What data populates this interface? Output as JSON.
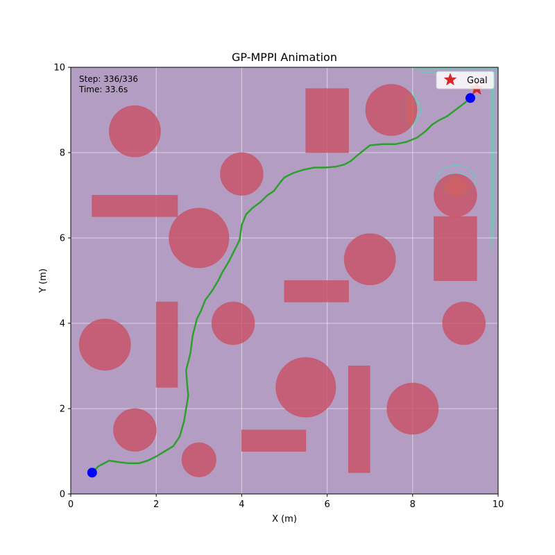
{
  "chart_data": {
    "type": "scatter",
    "title": "GP-MPPI Animation",
    "xlabel": "X (m)",
    "ylabel": "Y (m)",
    "xlim": [
      0,
      10
    ],
    "ylim": [
      0,
      10
    ],
    "xticks": [
      0,
      2,
      4,
      6,
      8,
      10
    ],
    "yticks": [
      0,
      2,
      4,
      6,
      8,
      10
    ],
    "grid": true,
    "legend": {
      "placement": "top-right",
      "entries": [
        {
          "label": "Goal",
          "marker": "star",
          "color": "#d62728"
        }
      ]
    },
    "info_text": {
      "step": "Step: 336/336",
      "time": "Time: 33.6s"
    },
    "colors": {
      "background": "#b49dc3",
      "obstacle": "#c85064",
      "path": "#2ca02c",
      "robot": "#0000ff",
      "goal": "#d62728",
      "hot": "#e8a060",
      "contour": "#5fd3b8"
    },
    "circle_obstacles": [
      {
        "x": 1.5,
        "y": 8.5,
        "r": 0.6
      },
      {
        "x": 4.0,
        "y": 7.5,
        "r": 0.5
      },
      {
        "x": 7.5,
        "y": 9.0,
        "r": 0.6
      },
      {
        "x": 3.0,
        "y": 6.0,
        "r": 0.7
      },
      {
        "x": 9.0,
        "y": 7.0,
        "r": 0.5
      },
      {
        "x": 7.0,
        "y": 5.5,
        "r": 0.6
      },
      {
        "x": 0.8,
        "y": 3.5,
        "r": 0.6
      },
      {
        "x": 3.8,
        "y": 4.0,
        "r": 0.5
      },
      {
        "x": 9.2,
        "y": 4.0,
        "r": 0.5
      },
      {
        "x": 5.5,
        "y": 2.5,
        "r": 0.7
      },
      {
        "x": 8.0,
        "y": 2.0,
        "r": 0.6
      },
      {
        "x": 1.5,
        "y": 1.5,
        "r": 0.5
      },
      {
        "x": 3.0,
        "y": 0.8,
        "r": 0.4
      }
    ],
    "rect_obstacles": [
      {
        "x0": 5.5,
        "y0": 8.0,
        "x1": 6.5,
        "y1": 9.5
      },
      {
        "x0": 0.5,
        "y0": 6.5,
        "x1": 2.5,
        "y1": 7.0
      },
      {
        "x0": 8.5,
        "y0": 5.0,
        "x1": 9.5,
        "y1": 6.5
      },
      {
        "x0": 5.0,
        "y0": 4.5,
        "x1": 6.5,
        "y1": 5.0
      },
      {
        "x0": 2.0,
        "y0": 2.5,
        "x1": 2.5,
        "y1": 4.5
      },
      {
        "x0": 6.5,
        "y0": 0.5,
        "x1": 7.0,
        "y1": 3.0
      },
      {
        "x0": 4.0,
        "y0": 1.0,
        "x1": 5.5,
        "y1": 1.5
      }
    ],
    "path": [
      [
        0.5,
        0.5
      ],
      [
        0.65,
        0.65
      ],
      [
        0.9,
        0.78
      ],
      [
        1.1,
        0.75
      ],
      [
        1.35,
        0.72
      ],
      [
        1.6,
        0.72
      ],
      [
        1.8,
        0.78
      ],
      [
        2.0,
        0.88
      ],
      [
        2.2,
        1.0
      ],
      [
        2.4,
        1.12
      ],
      [
        2.55,
        1.35
      ],
      [
        2.65,
        1.7
      ],
      [
        2.7,
        2.0
      ],
      [
        2.75,
        2.3
      ],
      [
        2.72,
        2.6
      ],
      [
        2.7,
        2.9
      ],
      [
        2.8,
        3.3
      ],
      [
        2.85,
        3.7
      ],
      [
        2.95,
        4.1
      ],
      [
        3.05,
        4.3
      ],
      [
        3.15,
        4.55
      ],
      [
        3.3,
        4.75
      ],
      [
        3.45,
        5.0
      ],
      [
        3.55,
        5.2
      ],
      [
        3.7,
        5.45
      ],
      [
        3.85,
        5.75
      ],
      [
        3.95,
        5.95
      ],
      [
        4.0,
        6.3
      ],
      [
        4.1,
        6.55
      ],
      [
        4.25,
        6.7
      ],
      [
        4.45,
        6.85
      ],
      [
        4.6,
        7.0
      ],
      [
        4.75,
        7.1
      ],
      [
        4.9,
        7.3
      ],
      [
        5.0,
        7.42
      ],
      [
        5.2,
        7.52
      ],
      [
        5.45,
        7.6
      ],
      [
        5.7,
        7.65
      ],
      [
        5.95,
        7.65
      ],
      [
        6.2,
        7.67
      ],
      [
        6.4,
        7.72
      ],
      [
        6.55,
        7.8
      ],
      [
        6.7,
        7.93
      ],
      [
        6.85,
        8.05
      ],
      [
        7.0,
        8.17
      ],
      [
        7.3,
        8.2
      ],
      [
        7.6,
        8.2
      ],
      [
        7.85,
        8.25
      ],
      [
        8.1,
        8.35
      ],
      [
        8.3,
        8.5
      ],
      [
        8.45,
        8.65
      ],
      [
        8.6,
        8.75
      ],
      [
        8.8,
        8.85
      ],
      [
        9.0,
        9.0
      ],
      [
        9.2,
        9.15
      ],
      [
        9.35,
        9.28
      ]
    ],
    "start": {
      "x": 0.5,
      "y": 0.5
    },
    "robot": {
      "x": 9.35,
      "y": 9.28
    },
    "goal": {
      "x": 9.5,
      "y": 9.5
    }
  }
}
